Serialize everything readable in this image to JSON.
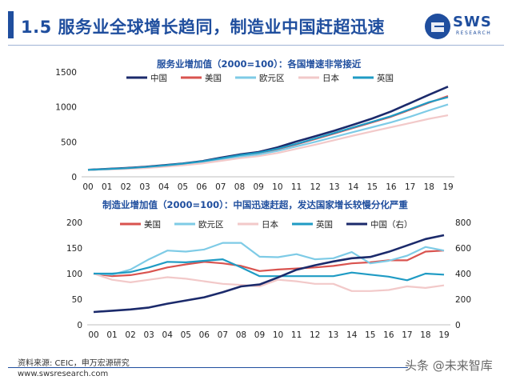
{
  "header": {
    "title": "1.5 服务业全球增长趋同，制造业中国赶超迅速"
  },
  "logo": {
    "main": "SWS",
    "sub": "RESEARCH"
  },
  "footer": {
    "source": "资料来源: CEIC，申万宏源研究",
    "url": "www.swsresearch.com",
    "watermark": "头条 @未来智库"
  },
  "colors": {
    "china": "#1b2a6b",
    "usa": "#d9534f",
    "eurozone": "#7ecbe6",
    "japan": "#f2c9c9",
    "uk": "#1f9bc4",
    "title": "#1f4e9e"
  },
  "chart_data": [
    {
      "type": "line",
      "title": "服务业增加值（2000=100）：各国增速非常接近",
      "categories": [
        "00",
        "01",
        "02",
        "03",
        "04",
        "05",
        "06",
        "07",
        "08",
        "09",
        "10",
        "11",
        "12",
        "13",
        "14",
        "15",
        "16",
        "17",
        "18",
        "19"
      ],
      "ylim": [
        0,
        1500
      ],
      "yticks": [
        0,
        500,
        1000,
        1500
      ],
      "legend": "top",
      "series": [
        {
          "name": "中国",
          "values": [
            100,
            112,
            126,
            143,
            165,
            190,
            222,
            272,
            320,
            355,
            420,
            505,
            580,
            660,
            745,
            835,
            935,
            1055,
            1175,
            1290
          ]
        },
        {
          "name": "美国",
          "values": [
            100,
            110,
            122,
            138,
            160,
            186,
            216,
            260,
            305,
            340,
            395,
            465,
            540,
            620,
            700,
            780,
            860,
            960,
            1060,
            1155
          ]
        },
        {
          "name": "欧元区",
          "values": [
            100,
            108,
            118,
            132,
            152,
            175,
            204,
            246,
            288,
            320,
            370,
            435,
            500,
            570,
            640,
            710,
            780,
            860,
            950,
            1035
          ]
        },
        {
          "name": "日本",
          "values": [
            100,
            105,
            113,
            125,
            143,
            164,
            190,
            228,
            266,
            295,
            340,
            400,
            460,
            525,
            590,
            650,
            710,
            770,
            830,
            880
          ]
        },
        {
          "name": "英国",
          "values": [
            100,
            110,
            123,
            140,
            162,
            188,
            220,
            264,
            310,
            346,
            402,
            472,
            548,
            628,
            708,
            788,
            868,
            968,
            1068,
            1140
          ]
        }
      ]
    },
    {
      "type": "line",
      "title": "制造业增加值（2000=100）：中国迅速赶超，发达国家增长较慢分化严重",
      "categories": [
        "00",
        "01",
        "02",
        "03",
        "04",
        "05",
        "06",
        "07",
        "08",
        "09",
        "10",
        "11",
        "12",
        "13",
        "14",
        "15",
        "16",
        "17",
        "18",
        "19"
      ],
      "ylim": [
        0,
        200
      ],
      "yticks": [
        0,
        50,
        100,
        150,
        200
      ],
      "y2lim": [
        0,
        800
      ],
      "y2ticks": [
        0,
        200,
        400,
        600,
        800
      ],
      "legend": "top",
      "series": [
        {
          "name": "美国",
          "axis": "left",
          "values": [
            100,
            95,
            97,
            103,
            112,
            118,
            123,
            120,
            115,
            105,
            108,
            110,
            112,
            115,
            120,
            122,
            126,
            126,
            143,
            145
          ]
        },
        {
          "name": "欧元区",
          "axis": "left",
          "values": [
            100,
            98,
            108,
            128,
            145,
            143,
            147,
            160,
            160,
            133,
            132,
            138,
            128,
            130,
            142,
            120,
            125,
            135,
            152,
            145
          ]
        },
        {
          "name": "日本",
          "axis": "left",
          "values": [
            100,
            88,
            83,
            88,
            93,
            90,
            85,
            80,
            78,
            75,
            88,
            85,
            80,
            80,
            66,
            66,
            68,
            75,
            72,
            77
          ]
        },
        {
          "name": "英国",
          "axis": "left",
          "values": [
            100,
            100,
            103,
            112,
            123,
            122,
            125,
            128,
            112,
            95,
            95,
            95,
            95,
            95,
            102,
            98,
            94,
            87,
            100,
            98
          ]
        },
        {
          "name": "中国（右）",
          "axis": "right",
          "values": [
            100,
            110,
            120,
            135,
            165,
            190,
            215,
            255,
            300,
            315,
            370,
            430,
            465,
            495,
            520,
            530,
            570,
            620,
            670,
            700
          ]
        }
      ]
    }
  ]
}
